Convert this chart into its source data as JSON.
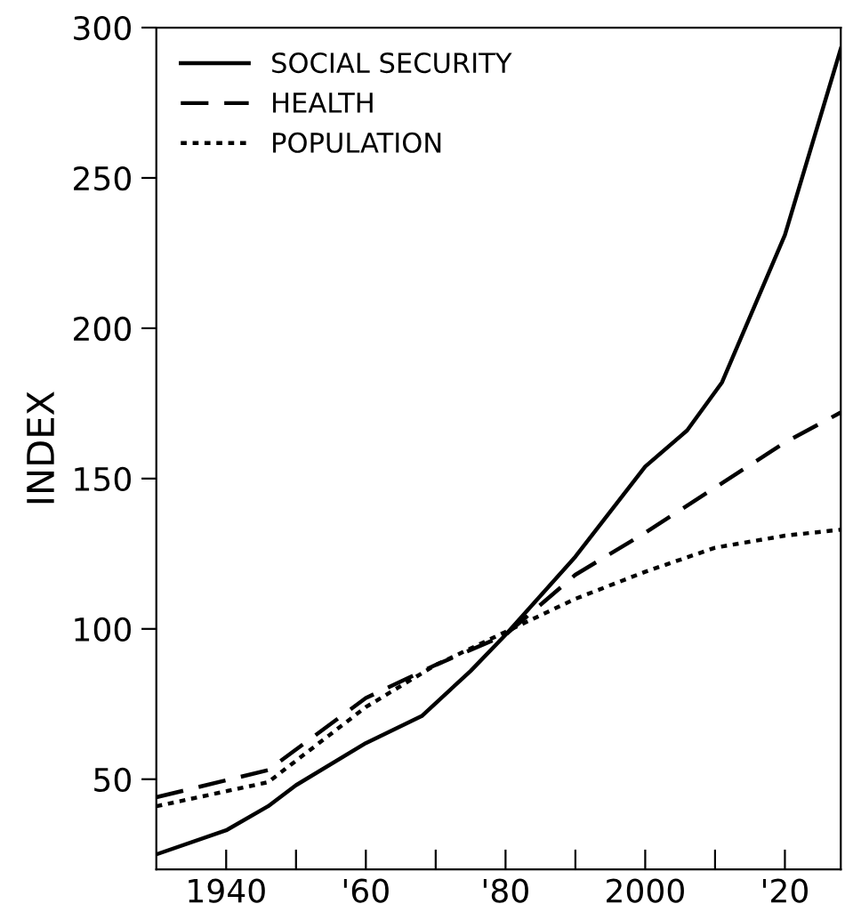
{
  "chart_data": {
    "type": "line",
    "ylabel": "INDEX",
    "series": [
      {
        "name": "SOCIAL SECURITY",
        "color": "#000000",
        "line_style": "solid",
        "x": [
          1930,
          1940,
          1946,
          1950,
          1960,
          1968,
          1975,
          1980,
          1990,
          2000,
          2006,
          2011,
          2020,
          2028
        ],
        "values": [
          25,
          33,
          41,
          48,
          62,
          71,
          86,
          98,
          124,
          154,
          166,
          182,
          231,
          293
        ]
      },
      {
        "name": "HEALTH",
        "color": "#000000",
        "line_style": "dashed",
        "x": [
          1930,
          1946,
          1960,
          1970,
          1980,
          1990,
          2000,
          2010,
          2020,
          2028
        ],
        "values": [
          44,
          53,
          77,
          88,
          98,
          118,
          132,
          147,
          162,
          172
        ]
      },
      {
        "name": "POPULATION",
        "color": "#000000",
        "line_style": "dotted",
        "x": [
          1930,
          1946,
          1960,
          1970,
          1980,
          1990,
          2000,
          2010,
          2020,
          2028
        ],
        "values": [
          41,
          49,
          74,
          88,
          99,
          110,
          119,
          127,
          131,
          133
        ]
      }
    ],
    "xlim": [
      1930,
      2028
    ],
    "ylim": [
      20,
      300
    ],
    "xticks": [
      {
        "value": 1940,
        "label": "1940"
      },
      {
        "value": 1950,
        "label": null
      },
      {
        "value": 1960,
        "label": "'60"
      },
      {
        "value": 1970,
        "label": null
      },
      {
        "value": 1980,
        "label": "'80"
      },
      {
        "value": 1990,
        "label": null
      },
      {
        "value": 2000,
        "label": "2000"
      },
      {
        "value": 2010,
        "label": null
      },
      {
        "value": 2020,
        "label": "'20"
      }
    ],
    "yticks": [
      50,
      100,
      150,
      200,
      250,
      300
    ],
    "grid": false,
    "legend": "top left"
  }
}
